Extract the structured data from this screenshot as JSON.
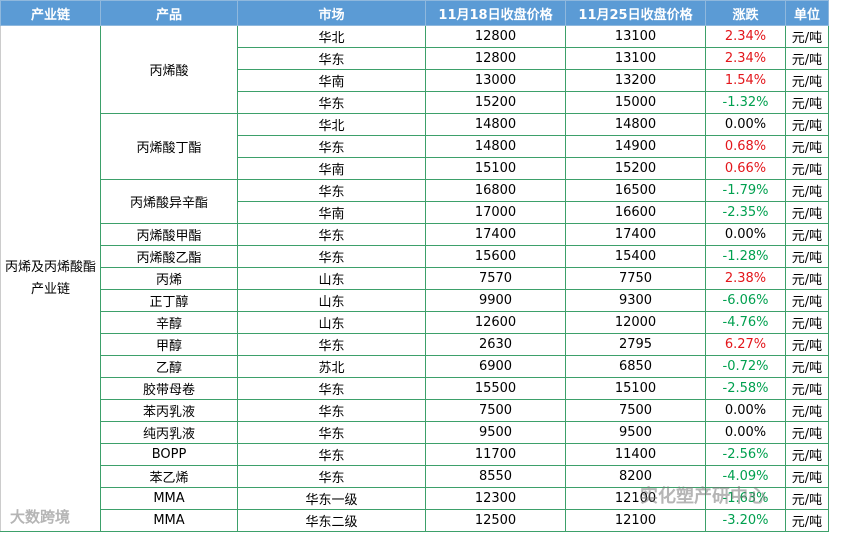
{
  "header": [
    "产业链",
    "产品",
    "市场",
    "11月18日收盘价格",
    "11月25日收盘价格",
    "涨跌",
    "单位"
  ],
  "chain": "丙烯及丙烯酸酯产业链",
  "change_colors": {
    "up": "#e3161b",
    "down": "#00a04f",
    "flat": "#000000"
  },
  "groups": [
    {
      "product": "丙烯酸",
      "rows": [
        [
          "华北",
          12800,
          13100,
          "2.34%",
          "元/吨"
        ],
        [
          "华东",
          12800,
          13100,
          "2.34%",
          "元/吨"
        ],
        [
          "华南",
          13000,
          13200,
          "1.54%",
          "元/吨"
        ],
        [
          "华东",
          15200,
          15000,
          "-1.32%",
          "元/吨"
        ]
      ]
    },
    {
      "product": "丙烯酸丁酯",
      "rows": [
        [
          "华北",
          14800,
          14800,
          "0.00%",
          "元/吨"
        ],
        [
          "华东",
          14800,
          14900,
          "0.68%",
          "元/吨"
        ],
        [
          "华南",
          15100,
          15200,
          "0.66%",
          "元/吨"
        ]
      ]
    },
    {
      "product": "丙烯酸异辛酯",
      "rows": [
        [
          "华东",
          16800,
          16500,
          "-1.79%",
          "元/吨"
        ],
        [
          "华南",
          17000,
          16600,
          "-2.35%",
          "元/吨"
        ]
      ]
    },
    {
      "product": "丙烯酸甲酯",
      "rows": [
        [
          "华东",
          17400,
          17400,
          "0.00%",
          "元/吨"
        ]
      ]
    },
    {
      "product": "丙烯酸乙酯",
      "rows": [
        [
          "华东",
          15600,
          15400,
          "-1.28%",
          "元/吨"
        ]
      ]
    },
    {
      "product": "丙烯",
      "rows": [
        [
          "山东",
          7570,
          7750,
          "2.38%",
          "元/吨"
        ]
      ]
    },
    {
      "product": "正丁醇",
      "rows": [
        [
          "山东",
          9900,
          9300,
          "-6.06%",
          "元/吨"
        ]
      ]
    },
    {
      "product": "辛醇",
      "rows": [
        [
          "山东",
          12600,
          12000,
          "-4.76%",
          "元/吨"
        ]
      ]
    },
    {
      "product": "甲醇",
      "rows": [
        [
          "华东",
          2630,
          2795,
          "6.27%",
          "元/吨"
        ]
      ]
    },
    {
      "product": "乙醇",
      "rows": [
        [
          "苏北",
          6900,
          6850,
          "-0.72%",
          "元/吨"
        ]
      ]
    },
    {
      "product": "胶带母卷",
      "rows": [
        [
          "华东",
          15500,
          15100,
          "-2.58%",
          "元/吨"
        ]
      ]
    },
    {
      "product": "苯丙乳液",
      "rows": [
        [
          "华东",
          7500,
          7500,
          "0.00%",
          "元/吨"
        ]
      ]
    },
    {
      "product": "纯丙乳液",
      "rows": [
        [
          "华东",
          9500,
          9500,
          "0.00%",
          "元/吨"
        ]
      ]
    },
    {
      "product": "BOPP",
      "rows": [
        [
          "华东",
          11700,
          11400,
          "-2.56%",
          "元/吨"
        ]
      ]
    },
    {
      "product": "苯乙烯",
      "rows": [
        [
          "华东",
          8550,
          8200,
          "-4.09%",
          "元/吨"
        ]
      ]
    },
    {
      "product": "MMA",
      "rows": [
        [
          "华东一级",
          12300,
          12100,
          "-1.63%",
          "元/吨"
        ]
      ]
    },
    {
      "product": "MMA",
      "rows": [
        [
          "华东二级",
          12500,
          12100,
          "-3.20%",
          "元/吨"
        ]
      ]
    }
  ],
  "watermarks": [
    "实化塑产研中心",
    "大数跨境"
  ]
}
